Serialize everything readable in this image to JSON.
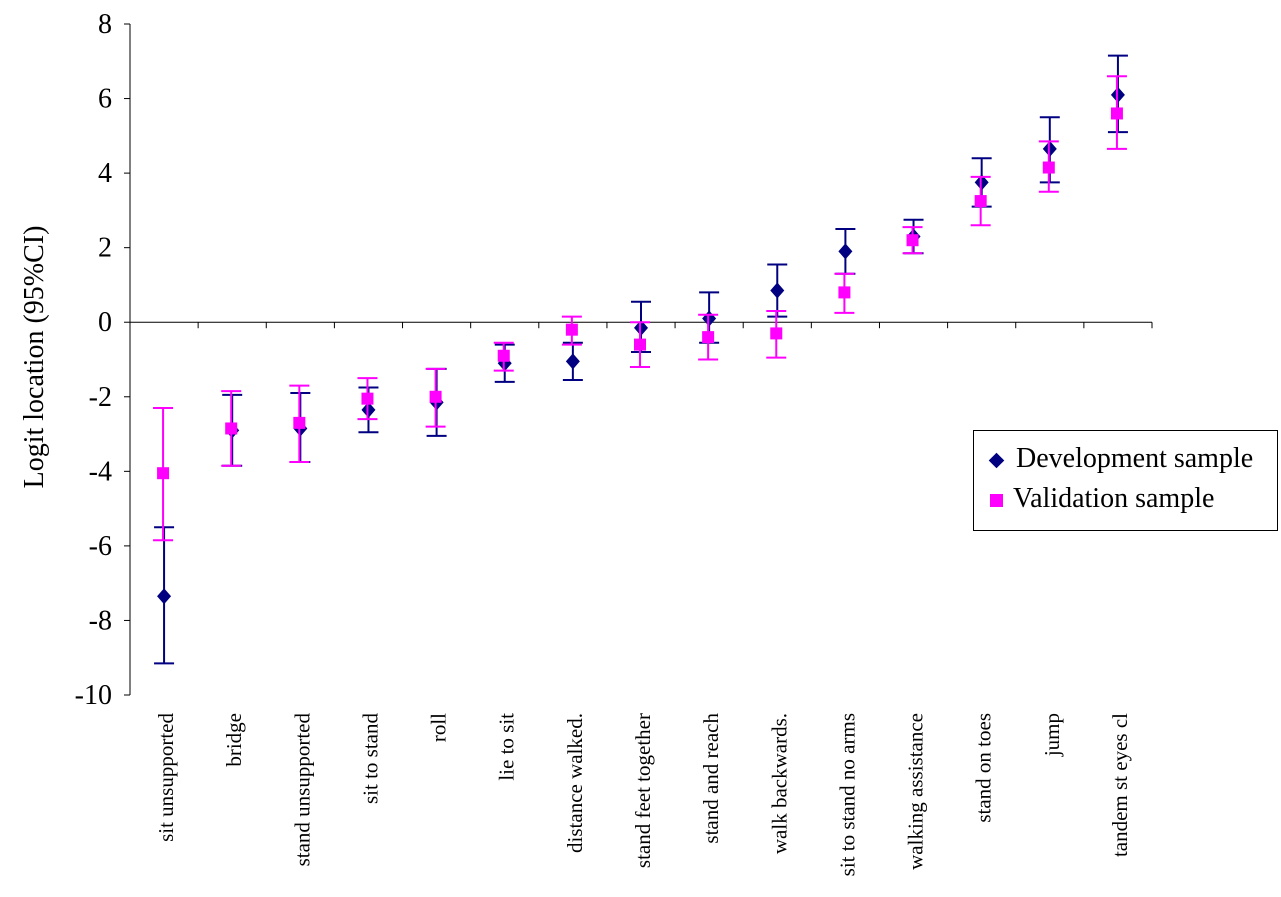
{
  "chart_data": {
    "type": "scatter",
    "ylabel": "Logit location (95%CI)",
    "xlabel": "",
    "ylim": [
      -10,
      8
    ],
    "yticks": [
      8,
      6,
      4,
      2,
      0,
      -2,
      -4,
      -6,
      -8,
      -10
    ],
    "ytick_labels": [
      "8",
      "6",
      "4",
      "2",
      "0",
      "-2",
      "-4",
      "-6",
      "-8",
      "-10"
    ],
    "categories": [
      "sit unsupported",
      "bridge",
      "stand unsupported",
      "sit to stand",
      "roll",
      "lie to sit",
      "distance walked.",
      "stand feet together",
      "stand and reach",
      "walk backwards.",
      "sit to stand no arms",
      "walking assistance",
      "stand on toes",
      "jump",
      "tandem st eyes cl"
    ],
    "legend_position": "right",
    "grid": false,
    "series": [
      {
        "name": "Development sample",
        "color": "#000080",
        "marker": "diamond",
        "values": [
          -7.35,
          -2.9,
          -2.85,
          -2.35,
          -2.15,
          -1.1,
          -1.05,
          -0.15,
          0.1,
          0.85,
          1.9,
          2.3,
          3.75,
          4.65,
          6.1
        ],
        "lower": [
          -9.15,
          -3.85,
          -3.75,
          -2.95,
          -3.05,
          -1.6,
          -1.55,
          -0.8,
          -0.55,
          0.15,
          1.3,
          1.85,
          3.1,
          3.75,
          5.1
        ],
        "upper": [
          -5.5,
          -1.95,
          -1.9,
          -1.75,
          -1.25,
          -0.6,
          -0.55,
          0.55,
          0.8,
          1.55,
          2.5,
          2.75,
          4.4,
          5.5,
          7.15
        ]
      },
      {
        "name": "Validation sample",
        "color": "#ff00ff",
        "marker": "square",
        "values": [
          -4.05,
          -2.85,
          -2.7,
          -2.05,
          -2.0,
          -0.9,
          -0.2,
          -0.6,
          -0.4,
          -0.3,
          0.8,
          2.2,
          3.25,
          4.15,
          5.6
        ],
        "lower": [
          -5.85,
          -3.85,
          -3.75,
          -2.6,
          -2.8,
          -1.3,
          -0.6,
          -1.2,
          -1.0,
          -0.95,
          0.25,
          1.85,
          2.6,
          3.5,
          4.65
        ],
        "upper": [
          -2.3,
          -1.85,
          -1.7,
          -1.5,
          -1.25,
          -0.55,
          0.15,
          0.0,
          0.2,
          0.3,
          1.3,
          2.55,
          3.9,
          4.85,
          6.6
        ]
      }
    ]
  }
}
